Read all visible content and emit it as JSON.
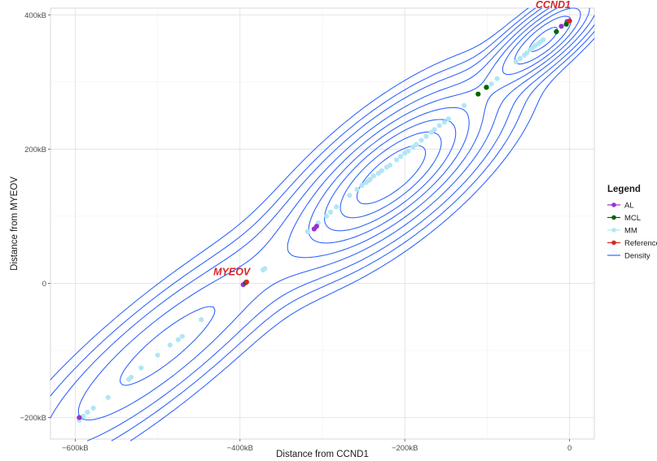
{
  "chart_data": {
    "type": "scatter",
    "xlabel": "Distance from CCND1",
    "ylabel": "Distance from MYEOV",
    "xlim": [
      -630000,
      30000
    ],
    "ylim": [
      -232000,
      410000
    ],
    "x_ticks": [
      {
        "value": -600000,
        "label": "−600kB"
      },
      {
        "value": -400000,
        "label": "−400kB"
      },
      {
        "value": -200000,
        "label": "−200kB"
      },
      {
        "value": 0,
        "label": "0"
      }
    ],
    "y_ticks": [
      {
        "value": -200000,
        "label": "−200kB"
      },
      {
        "value": 0,
        "label": "0"
      },
      {
        "value": 200000,
        "label": "200kB"
      },
      {
        "value": 400000,
        "label": "400kB"
      }
    ],
    "grid": true,
    "legend": {
      "title": "Legend",
      "position": "right",
      "entries": [
        {
          "label": "AL",
          "color": "#9932cc",
          "kind": "point"
        },
        {
          "label": "MCL",
          "color": "#006400",
          "kind": "point"
        },
        {
          "label": "MM",
          "color": "#b2e6f5",
          "kind": "point"
        },
        {
          "label": "Reference",
          "color": "#d62728",
          "kind": "point"
        },
        {
          "label": "Density",
          "color": "#3366ff",
          "kind": "line"
        }
      ]
    },
    "annotations": [
      {
        "text": "CCND1",
        "x": -20000,
        "y": 410000
      },
      {
        "text": "MYEOV",
        "x": -410000,
        "y": 12000
      }
    ],
    "series": [
      {
        "name": "MM",
        "color": "#b2e6f5",
        "points": [
          [
            -595000,
            -204000
          ],
          [
            -590000,
            -198000
          ],
          [
            -585000,
            -192000
          ],
          [
            -578000,
            -186000
          ],
          [
            -560000,
            -170000
          ],
          [
            -535000,
            -143000
          ],
          [
            -532000,
            -140000
          ],
          [
            -520000,
            -126000
          ],
          [
            -500000,
            -107000
          ],
          [
            -485000,
            -92000
          ],
          [
            -475000,
            -84000
          ],
          [
            -470000,
            -79000
          ],
          [
            -447000,
            -54000
          ],
          [
            -372000,
            20000
          ],
          [
            -370000,
            22000
          ],
          [
            -318000,
            77000
          ],
          [
            -305000,
            90000
          ],
          [
            -295000,
            100000
          ],
          [
            -290000,
            106000
          ],
          [
            -283000,
            114000
          ],
          [
            -267000,
            131000
          ],
          [
            -258000,
            140000
          ],
          [
            -252000,
            146000
          ],
          [
            -247000,
            150000
          ],
          [
            -244000,
            153000
          ],
          [
            -242000,
            155000
          ],
          [
            -238000,
            160000
          ],
          [
            -232000,
            164000
          ],
          [
            -228000,
            168000
          ],
          [
            -222000,
            173000
          ],
          [
            -218000,
            176000
          ],
          [
            -210000,
            184000
          ],
          [
            -205000,
            189000
          ],
          [
            -200000,
            194000
          ],
          [
            -196000,
            197000
          ],
          [
            -190000,
            203000
          ],
          [
            -186000,
            207000
          ],
          [
            -180000,
            213000
          ],
          [
            -174000,
            219000
          ],
          [
            -168000,
            225000
          ],
          [
            -164000,
            229000
          ],
          [
            -158000,
            235000
          ],
          [
            -152000,
            240000
          ],
          [
            -147000,
            245000
          ],
          [
            -128000,
            265000
          ],
          [
            -100000,
            292000
          ],
          [
            -95000,
            297000
          ],
          [
            -88000,
            305000
          ],
          [
            -65000,
            330000
          ],
          [
            -60000,
            335000
          ],
          [
            -55000,
            340000
          ],
          [
            -52000,
            343000
          ],
          [
            -48000,
            348000
          ],
          [
            -45000,
            351000
          ],
          [
            -42000,
            354000
          ],
          [
            -38000,
            357000
          ],
          [
            -35000,
            360000
          ],
          [
            -32000,
            363000
          ]
        ]
      },
      {
        "name": "AL",
        "color": "#9932cc",
        "points": [
          [
            -595000,
            -200000
          ],
          [
            -396000,
            -2000
          ],
          [
            -310000,
            81000
          ],
          [
            -307000,
            85000
          ],
          [
            -10000,
            383000
          ],
          [
            -3000,
            390000
          ]
        ]
      },
      {
        "name": "MCL",
        "color": "#006400",
        "points": [
          [
            -111000,
            282000
          ],
          [
            -101000,
            292000
          ],
          [
            -16000,
            375000
          ],
          [
            -4000,
            386000
          ],
          [
            -393000,
            1000
          ]
        ]
      },
      {
        "name": "Reference",
        "color": "#d62728",
        "points": [
          [
            -392000,
            2000
          ],
          [
            0,
            391000
          ]
        ]
      }
    ],
    "density": {
      "color": "#3366ff",
      "modes": [
        {
          "x": -215000,
          "y": 163000,
          "weight": 1.0,
          "sigma_major": 95000,
          "sigma_minor": 36000
        },
        {
          "x": -30000,
          "y": 365000,
          "weight": 0.75,
          "sigma_major": 55000,
          "sigma_minor": 18000
        },
        {
          "x": -490000,
          "y": -95000,
          "weight": 0.35,
          "sigma_major": 140000,
          "sigma_minor": 34000
        }
      ],
      "levels": [
        0.035,
        0.07,
        0.12,
        0.2,
        0.3,
        0.42,
        0.55,
        0.7,
        0.85
      ]
    }
  }
}
